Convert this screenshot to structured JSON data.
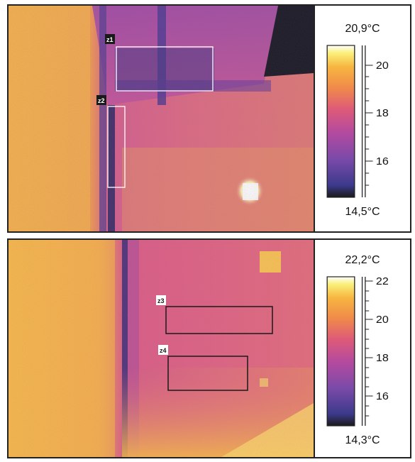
{
  "colors": {
    "palette": [
      "#1a1a1a",
      "#3c3a8c",
      "#7a4aa8",
      "#b24aa0",
      "#de5a78",
      "#f08a4a",
      "#f7b640",
      "#faf07a",
      "#ffffff"
    ]
  },
  "panels": [
    {
      "max_label": "20,9°C",
      "min_label": "14,5°C",
      "ticks": [
        "20",
        "18",
        "16"
      ],
      "zones": [
        "z1",
        "z2"
      ]
    },
    {
      "max_label": "22,2°C",
      "min_label": "14,3°C",
      "ticks": [
        "22",
        "20",
        "18",
        "16"
      ],
      "zones": [
        "z3",
        "z4"
      ]
    }
  ]
}
